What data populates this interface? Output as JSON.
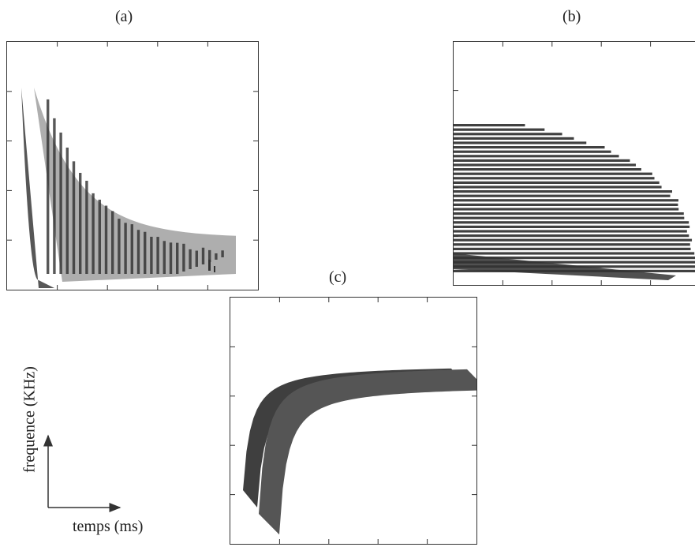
{
  "panels": {
    "a": {
      "label": "(a)"
    },
    "b": {
      "label": "(b)"
    },
    "c": {
      "label": "(c)"
    }
  },
  "axes": {
    "ylabel": "frequence (KHz)",
    "xlabel": "temps (ms)"
  }
}
